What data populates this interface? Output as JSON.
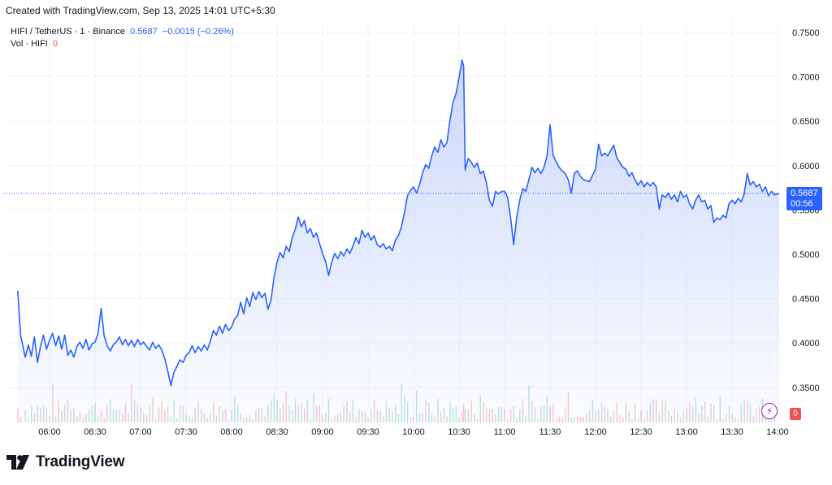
{
  "header": {
    "credit": "Created with TradingView.com, Sep 13, 2025 14:01 UTC+5:30"
  },
  "legend": {
    "symbol": "HIFI / TetherUS · 1 · Binance",
    "last": "0.5687",
    "change": "−0.0015 (−0.26%)",
    "volume_label": "Vol · HIFI",
    "volume_value": "0"
  },
  "price_axis": {
    "ticks": [
      "0.7500",
      "0.7000",
      "0.6500",
      "0.6000",
      "0.5500",
      "0.5000",
      "0.4500",
      "0.4000",
      "0.3500"
    ],
    "last_price_tag": "0.5687",
    "countdown": "00:56",
    "volume_tag": "0"
  },
  "brand": {
    "name": "TradingView"
  },
  "colors": {
    "line": "#2962ff",
    "area_top": "#c9d6fb",
    "up_volume": "#26a69a",
    "down_volume": "#ef5350",
    "indicator_icon": "#9c27b0"
  },
  "chart_data": {
    "type": "area",
    "x_ticks": [
      "06:00",
      "06:30",
      "07:00",
      "07:30",
      "08:00",
      "08:30",
      "09:00",
      "09:30",
      "10:00",
      "10:30",
      "11:00",
      "11:30",
      "12:00",
      "12:30",
      "13:00",
      "13:30",
      "14:00"
    ],
    "ylim": [
      0.325,
      0.765
    ],
    "grid": true,
    "last_value": 0.5687,
    "series": [
      {
        "values": [
          {
            "t": "05:39",
            "y": 0.459
          },
          {
            "t": "05:41",
            "y": 0.408
          },
          {
            "t": "05:44",
            "y": 0.384
          },
          {
            "t": "05:46",
            "y": 0.398
          },
          {
            "t": "05:48",
            "y": 0.385
          },
          {
            "t": "05:50",
            "y": 0.407
          },
          {
            "t": "05:52",
            "y": 0.378
          },
          {
            "t": "05:54",
            "y": 0.396
          },
          {
            "t": "05:56",
            "y": 0.409
          },
          {
            "t": "05:58",
            "y": 0.393
          },
          {
            "t": "06:00",
            "y": 0.403
          },
          {
            "t": "06:02",
            "y": 0.411
          },
          {
            "t": "06:04",
            "y": 0.397
          },
          {
            "t": "06:06",
            "y": 0.408
          },
          {
            "t": "06:08",
            "y": 0.393
          },
          {
            "t": "06:10",
            "y": 0.409
          },
          {
            "t": "06:12",
            "y": 0.386
          },
          {
            "t": "06:14",
            "y": 0.392
          },
          {
            "t": "06:16",
            "y": 0.384
          },
          {
            "t": "06:18",
            "y": 0.396
          },
          {
            "t": "06:20",
            "y": 0.401
          },
          {
            "t": "06:22",
            "y": 0.394
          },
          {
            "t": "06:24",
            "y": 0.404
          },
          {
            "t": "06:26",
            "y": 0.392
          },
          {
            "t": "06:28",
            "y": 0.399
          },
          {
            "t": "06:30",
            "y": 0.401
          },
          {
            "t": "06:32",
            "y": 0.411
          },
          {
            "t": "06:34",
            "y": 0.439
          },
          {
            "t": "06:36",
            "y": 0.408
          },
          {
            "t": "06:38",
            "y": 0.397
          },
          {
            "t": "06:40",
            "y": 0.391
          },
          {
            "t": "06:42",
            "y": 0.398
          },
          {
            "t": "06:44",
            "y": 0.401
          },
          {
            "t": "06:46",
            "y": 0.407
          },
          {
            "t": "06:48",
            "y": 0.398
          },
          {
            "t": "06:50",
            "y": 0.404
          },
          {
            "t": "06:52",
            "y": 0.397
          },
          {
            "t": "06:54",
            "y": 0.403
          },
          {
            "t": "06:56",
            "y": 0.396
          },
          {
            "t": "06:58",
            "y": 0.404
          },
          {
            "t": "07:00",
            "y": 0.398
          },
          {
            "t": "07:02",
            "y": 0.401
          },
          {
            "t": "07:04",
            "y": 0.396
          },
          {
            "t": "07:06",
            "y": 0.392
          },
          {
            "t": "07:08",
            "y": 0.401
          },
          {
            "t": "07:10",
            "y": 0.394
          },
          {
            "t": "07:12",
            "y": 0.398
          },
          {
            "t": "07:14",
            "y": 0.392
          },
          {
            "t": "07:16",
            "y": 0.382
          },
          {
            "t": "07:18",
            "y": 0.368
          },
          {
            "t": "07:20",
            "y": 0.352
          },
          {
            "t": "07:22",
            "y": 0.367
          },
          {
            "t": "07:24",
            "y": 0.374
          },
          {
            "t": "07:26",
            "y": 0.381
          },
          {
            "t": "07:28",
            "y": 0.378
          },
          {
            "t": "07:30",
            "y": 0.386
          },
          {
            "t": "07:32",
            "y": 0.389
          },
          {
            "t": "07:34",
            "y": 0.397
          },
          {
            "t": "07:36",
            "y": 0.389
          },
          {
            "t": "07:38",
            "y": 0.396
          },
          {
            "t": "07:40",
            "y": 0.391
          },
          {
            "t": "07:42",
            "y": 0.398
          },
          {
            "t": "07:44",
            "y": 0.392
          },
          {
            "t": "07:46",
            "y": 0.402
          },
          {
            "t": "07:48",
            "y": 0.414
          },
          {
            "t": "07:50",
            "y": 0.409
          },
          {
            "t": "07:52",
            "y": 0.419
          },
          {
            "t": "07:54",
            "y": 0.411
          },
          {
            "t": "07:56",
            "y": 0.421
          },
          {
            "t": "07:58",
            "y": 0.414
          },
          {
            "t": "08:00",
            "y": 0.418
          },
          {
            "t": "08:02",
            "y": 0.427
          },
          {
            "t": "08:04",
            "y": 0.431
          },
          {
            "t": "08:06",
            "y": 0.446
          },
          {
            "t": "08:08",
            "y": 0.433
          },
          {
            "t": "08:10",
            "y": 0.451
          },
          {
            "t": "08:12",
            "y": 0.441
          },
          {
            "t": "08:14",
            "y": 0.457
          },
          {
            "t": "08:16",
            "y": 0.449
          },
          {
            "t": "08:18",
            "y": 0.458
          },
          {
            "t": "08:20",
            "y": 0.451
          },
          {
            "t": "08:22",
            "y": 0.456
          },
          {
            "t": "08:24",
            "y": 0.438
          },
          {
            "t": "08:26",
            "y": 0.448
          },
          {
            "t": "08:28",
            "y": 0.474
          },
          {
            "t": "08:30",
            "y": 0.491
          },
          {
            "t": "08:32",
            "y": 0.502
          },
          {
            "t": "08:34",
            "y": 0.496
          },
          {
            "t": "08:36",
            "y": 0.509
          },
          {
            "t": "08:38",
            "y": 0.503
          },
          {
            "t": "08:40",
            "y": 0.519
          },
          {
            "t": "08:42",
            "y": 0.528
          },
          {
            "t": "08:44",
            "y": 0.542
          },
          {
            "t": "08:46",
            "y": 0.531
          },
          {
            "t": "08:48",
            "y": 0.538
          },
          {
            "t": "08:50",
            "y": 0.524
          },
          {
            "t": "08:52",
            "y": 0.529
          },
          {
            "t": "08:54",
            "y": 0.519
          },
          {
            "t": "08:56",
            "y": 0.524
          },
          {
            "t": "08:58",
            "y": 0.512
          },
          {
            "t": "09:00",
            "y": 0.501
          },
          {
            "t": "09:02",
            "y": 0.492
          },
          {
            "t": "09:04",
            "y": 0.476
          },
          {
            "t": "09:06",
            "y": 0.491
          },
          {
            "t": "09:08",
            "y": 0.501
          },
          {
            "t": "09:10",
            "y": 0.495
          },
          {
            "t": "09:12",
            "y": 0.503
          },
          {
            "t": "09:14",
            "y": 0.498
          },
          {
            "t": "09:16",
            "y": 0.506
          },
          {
            "t": "09:18",
            "y": 0.501
          },
          {
            "t": "09:20",
            "y": 0.509
          },
          {
            "t": "09:22",
            "y": 0.519
          },
          {
            "t": "09:24",
            "y": 0.512
          },
          {
            "t": "09:26",
            "y": 0.527
          },
          {
            "t": "09:28",
            "y": 0.519
          },
          {
            "t": "09:30",
            "y": 0.524
          },
          {
            "t": "09:32",
            "y": 0.516
          },
          {
            "t": "09:34",
            "y": 0.521
          },
          {
            "t": "09:36",
            "y": 0.511
          },
          {
            "t": "09:38",
            "y": 0.508
          },
          {
            "t": "09:40",
            "y": 0.512
          },
          {
            "t": "09:42",
            "y": 0.506
          },
          {
            "t": "09:44",
            "y": 0.509
          },
          {
            "t": "09:46",
            "y": 0.504
          },
          {
            "t": "09:48",
            "y": 0.516
          },
          {
            "t": "09:50",
            "y": 0.521
          },
          {
            "t": "09:52",
            "y": 0.531
          },
          {
            "t": "09:54",
            "y": 0.547
          },
          {
            "t": "09:56",
            "y": 0.566
          },
          {
            "t": "09:58",
            "y": 0.572
          },
          {
            "t": "10:00",
            "y": 0.576
          },
          {
            "t": "10:02",
            "y": 0.569
          },
          {
            "t": "10:04",
            "y": 0.579
          },
          {
            "t": "10:06",
            "y": 0.592
          },
          {
            "t": "10:08",
            "y": 0.601
          },
          {
            "t": "10:10",
            "y": 0.597
          },
          {
            "t": "10:12",
            "y": 0.611
          },
          {
            "t": "10:14",
            "y": 0.621
          },
          {
            "t": "10:16",
            "y": 0.615
          },
          {
            "t": "10:18",
            "y": 0.629
          },
          {
            "t": "10:20",
            "y": 0.621
          },
          {
            "t": "10:22",
            "y": 0.626
          },
          {
            "t": "10:24",
            "y": 0.651
          },
          {
            "t": "10:26",
            "y": 0.671
          },
          {
            "t": "10:28",
            "y": 0.681
          },
          {
            "t": "10:30",
            "y": 0.699
          },
          {
            "t": "10:32",
            "y": 0.719
          },
          {
            "t": "10:33",
            "y": 0.712
          },
          {
            "t": "10:34",
            "y": 0.595
          },
          {
            "t": "10:36",
            "y": 0.608
          },
          {
            "t": "10:38",
            "y": 0.604
          },
          {
            "t": "10:40",
            "y": 0.598
          },
          {
            "t": "10:42",
            "y": 0.603
          },
          {
            "t": "10:44",
            "y": 0.591
          },
          {
            "t": "10:46",
            "y": 0.594
          },
          {
            "t": "10:48",
            "y": 0.581
          },
          {
            "t": "10:50",
            "y": 0.561
          },
          {
            "t": "10:52",
            "y": 0.554
          },
          {
            "t": "10:54",
            "y": 0.571
          },
          {
            "t": "10:56",
            "y": 0.568
          },
          {
            "t": "10:58",
            "y": 0.571
          },
          {
            "t": "11:00",
            "y": 0.571
          },
          {
            "t": "11:02",
            "y": 0.564
          },
          {
            "t": "11:04",
            "y": 0.541
          },
          {
            "t": "11:06",
            "y": 0.511
          },
          {
            "t": "11:08",
            "y": 0.541
          },
          {
            "t": "11:10",
            "y": 0.561
          },
          {
            "t": "11:12",
            "y": 0.574
          },
          {
            "t": "11:14",
            "y": 0.571
          },
          {
            "t": "11:16",
            "y": 0.584
          },
          {
            "t": "11:18",
            "y": 0.598
          },
          {
            "t": "11:20",
            "y": 0.592
          },
          {
            "t": "11:22",
            "y": 0.597
          },
          {
            "t": "11:24",
            "y": 0.591
          },
          {
            "t": "11:26",
            "y": 0.598
          },
          {
            "t": "11:28",
            "y": 0.611
          },
          {
            "t": "11:30",
            "y": 0.646
          },
          {
            "t": "11:32",
            "y": 0.612
          },
          {
            "t": "11:34",
            "y": 0.604
          },
          {
            "t": "11:36",
            "y": 0.598
          },
          {
            "t": "11:38",
            "y": 0.594
          },
          {
            "t": "11:40",
            "y": 0.591
          },
          {
            "t": "11:42",
            "y": 0.584
          },
          {
            "t": "11:44",
            "y": 0.569
          },
          {
            "t": "11:46",
            "y": 0.591
          },
          {
            "t": "11:48",
            "y": 0.594
          },
          {
            "t": "11:50",
            "y": 0.588
          },
          {
            "t": "11:52",
            "y": 0.584
          },
          {
            "t": "11:54",
            "y": 0.583
          },
          {
            "t": "11:56",
            "y": 0.582
          },
          {
            "t": "11:58",
            "y": 0.589
          },
          {
            "t": "12:00",
            "y": 0.596
          },
          {
            "t": "12:02",
            "y": 0.624
          },
          {
            "t": "12:04",
            "y": 0.611
          },
          {
            "t": "12:06",
            "y": 0.614
          },
          {
            "t": "12:08",
            "y": 0.611
          },
          {
            "t": "12:10",
            "y": 0.617
          },
          {
            "t": "12:12",
            "y": 0.623
          },
          {
            "t": "12:14",
            "y": 0.609
          },
          {
            "t": "12:16",
            "y": 0.603
          },
          {
            "t": "12:18",
            "y": 0.598
          },
          {
            "t": "12:20",
            "y": 0.596
          },
          {
            "t": "12:22",
            "y": 0.588
          },
          {
            "t": "12:24",
            "y": 0.592
          },
          {
            "t": "12:26",
            "y": 0.584
          },
          {
            "t": "12:28",
            "y": 0.578
          },
          {
            "t": "12:30",
            "y": 0.583
          },
          {
            "t": "12:32",
            "y": 0.576
          },
          {
            "t": "12:34",
            "y": 0.581
          },
          {
            "t": "12:36",
            "y": 0.577
          },
          {
            "t": "12:38",
            "y": 0.581
          },
          {
            "t": "12:40",
            "y": 0.576
          },
          {
            "t": "12:42",
            "y": 0.551
          },
          {
            "t": "12:44",
            "y": 0.567
          },
          {
            "t": "12:46",
            "y": 0.564
          },
          {
            "t": "12:48",
            "y": 0.569
          },
          {
            "t": "12:50",
            "y": 0.562
          },
          {
            "t": "12:52",
            "y": 0.567
          },
          {
            "t": "12:54",
            "y": 0.559
          },
          {
            "t": "12:56",
            "y": 0.571
          },
          {
            "t": "12:58",
            "y": 0.564
          },
          {
            "t": "13:00",
            "y": 0.567
          },
          {
            "t": "13:02",
            "y": 0.557
          },
          {
            "t": "13:04",
            "y": 0.551
          },
          {
            "t": "13:06",
            "y": 0.561
          },
          {
            "t": "13:08",
            "y": 0.567
          },
          {
            "t": "13:10",
            "y": 0.559
          },
          {
            "t": "13:12",
            "y": 0.561
          },
          {
            "t": "13:14",
            "y": 0.551
          },
          {
            "t": "13:16",
            "y": 0.555
          },
          {
            "t": "13:18",
            "y": 0.536
          },
          {
            "t": "13:20",
            "y": 0.541
          },
          {
            "t": "13:22",
            "y": 0.539
          },
          {
            "t": "13:24",
            "y": 0.544
          },
          {
            "t": "13:26",
            "y": 0.541
          },
          {
            "t": "13:28",
            "y": 0.557
          },
          {
            "t": "13:30",
            "y": 0.561
          },
          {
            "t": "13:32",
            "y": 0.557
          },
          {
            "t": "13:34",
            "y": 0.563
          },
          {
            "t": "13:36",
            "y": 0.559
          },
          {
            "t": "13:38",
            "y": 0.568
          },
          {
            "t": "13:40",
            "y": 0.591
          },
          {
            "t": "13:42",
            "y": 0.578
          },
          {
            "t": "13:44",
            "y": 0.582
          },
          {
            "t": "13:46",
            "y": 0.576
          },
          {
            "t": "13:48",
            "y": 0.579
          },
          {
            "t": "13:50",
            "y": 0.571
          },
          {
            "t": "13:52",
            "y": 0.576
          },
          {
            "t": "13:54",
            "y": 0.566
          },
          {
            "t": "13:56",
            "y": 0.571
          },
          {
            "t": "13:58",
            "y": 0.567
          },
          {
            "t": "14:01",
            "y": 0.5687
          }
        ]
      }
    ]
  }
}
